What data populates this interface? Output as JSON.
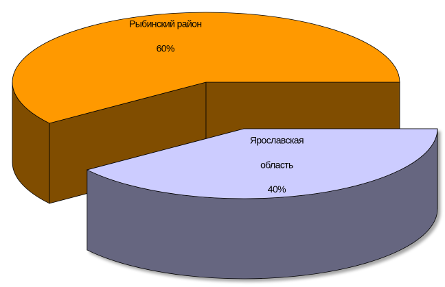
{
  "chart_data": {
    "type": "pie",
    "categories": [
      "Рыбинский район",
      "Ярославская область"
    ],
    "values": [
      60,
      40
    ],
    "value_labels": [
      "60%",
      "40%"
    ],
    "colors": [
      "#ff9900",
      "#ccccff"
    ]
  }
}
